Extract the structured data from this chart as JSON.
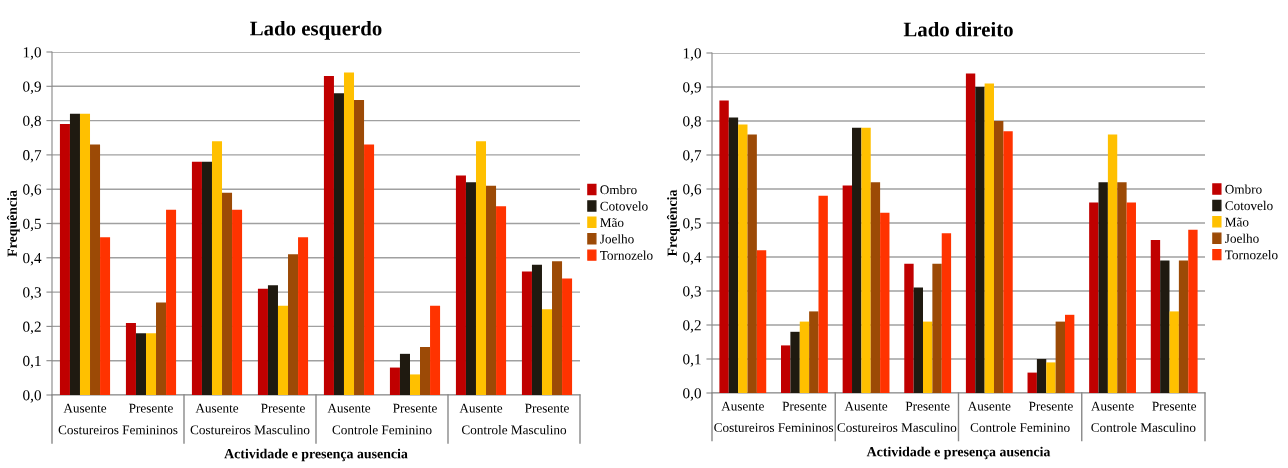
{
  "chart_data": [
    {
      "type": "bar",
      "title": "Lado esquerdo",
      "xlabel": "Actividade e presença ausencia",
      "ylabel": "Frequência",
      "categories": [
        "Ausente",
        "Presente",
        "Ausente",
        "Presente",
        "Ausente",
        "Presente",
        "Ausente",
        "Presente"
      ],
      "annotations": [
        "Costureiros Femininos",
        "Costureiros Masculino",
        "Controle Feminino",
        "Controle Masculino"
      ],
      "series": [
        {
          "name": "Ombro",
          "color": "#c00000",
          "values": [
            0.79,
            0.21,
            0.68,
            0.31,
            0.93,
            0.08,
            0.64,
            0.36
          ]
        },
        {
          "name": "Cotovelo",
          "color": "#1f1a10",
          "values": [
            0.82,
            0.18,
            0.68,
            0.32,
            0.88,
            0.12,
            0.62,
            0.38
          ]
        },
        {
          "name": "Mão",
          "color": "#ffc000",
          "values": [
            0.82,
            0.18,
            0.74,
            0.26,
            0.94,
            0.06,
            0.74,
            0.25
          ]
        },
        {
          "name": "Joelho",
          "color": "#9c4a06",
          "values": [
            0.73,
            0.27,
            0.59,
            0.41,
            0.86,
            0.14,
            0.61,
            0.39
          ]
        },
        {
          "name": "Tornozelo",
          "color": "#ff3300",
          "values": [
            0.46,
            0.54,
            0.54,
            0.46,
            0.73,
            0.26,
            0.55,
            0.34
          ]
        }
      ],
      "ylim": [
        0,
        1.0
      ],
      "yticks": [
        {
          "value": 0,
          "label": "0,0"
        },
        {
          "value": 0.1,
          "label": "0,1"
        },
        {
          "value": 0.2,
          "label": "0,2"
        },
        {
          "value": 0.3,
          "label": "0,3"
        },
        {
          "value": 0.4,
          "label": "0,4"
        },
        {
          "value": 0.5,
          "label": "0,5"
        },
        {
          "value": 0.6,
          "label": "0,6"
        },
        {
          "value": 0.7,
          "label": "0,7"
        },
        {
          "value": 0.8,
          "label": "0,8"
        },
        {
          "value": 0.9,
          "label": "0,9"
        },
        {
          "value": 1.0,
          "label": "1,0"
        }
      ],
      "grid": "y",
      "legend": "right"
    },
    {
      "type": "bar",
      "title": "Lado direito",
      "xlabel": "Actividade e presença ausencia",
      "ylabel": "Frequência",
      "categories": [
        "Ausente",
        "Presente",
        "Ausente",
        "Presente",
        "Ausente",
        "Presente",
        "Ausente",
        "Presente"
      ],
      "annotations": [
        "Costureiros Femininos",
        "Costureiros Masculino",
        "Controle Feminino",
        "Controle Masculino"
      ],
      "series": [
        {
          "name": "Ombro",
          "color": "#c00000",
          "values": [
            0.86,
            0.14,
            0.61,
            0.38,
            0.94,
            0.06,
            0.56,
            0.45
          ]
        },
        {
          "name": "Cotovelo",
          "color": "#1f1a10",
          "values": [
            0.81,
            0.18,
            0.78,
            0.31,
            0.9,
            0.1,
            0.62,
            0.39
          ]
        },
        {
          "name": "Mão",
          "color": "#ffc000",
          "values": [
            0.79,
            0.21,
            0.78,
            0.21,
            0.91,
            0.09,
            0.76,
            0.24
          ]
        },
        {
          "name": "Joelho",
          "color": "#9c4a06",
          "values": [
            0.76,
            0.24,
            0.62,
            0.38,
            0.8,
            0.21,
            0.62,
            0.39
          ]
        },
        {
          "name": "Tornozelo",
          "color": "#ff3300",
          "values": [
            0.42,
            0.58,
            0.53,
            0.47,
            0.77,
            0.23,
            0.56,
            0.48
          ]
        }
      ],
      "ylim": [
        0,
        1.0
      ],
      "yticks": [
        {
          "value": 0,
          "label": "0,0"
        },
        {
          "value": 0.1,
          "label": "0,1"
        },
        {
          "value": 0.2,
          "label": "0,2"
        },
        {
          "value": 0.3,
          "label": "0,3"
        },
        {
          "value": 0.4,
          "label": "0,4"
        },
        {
          "value": 0.5,
          "label": "0,5"
        },
        {
          "value": 0.6,
          "label": "0,6"
        },
        {
          "value": 0.7,
          "label": "0,7"
        },
        {
          "value": 0.8,
          "label": "0,8"
        },
        {
          "value": 0.9,
          "label": "0,9"
        },
        {
          "value": 1.0,
          "label": "1,0"
        }
      ],
      "grid": "y",
      "legend": "right"
    }
  ]
}
